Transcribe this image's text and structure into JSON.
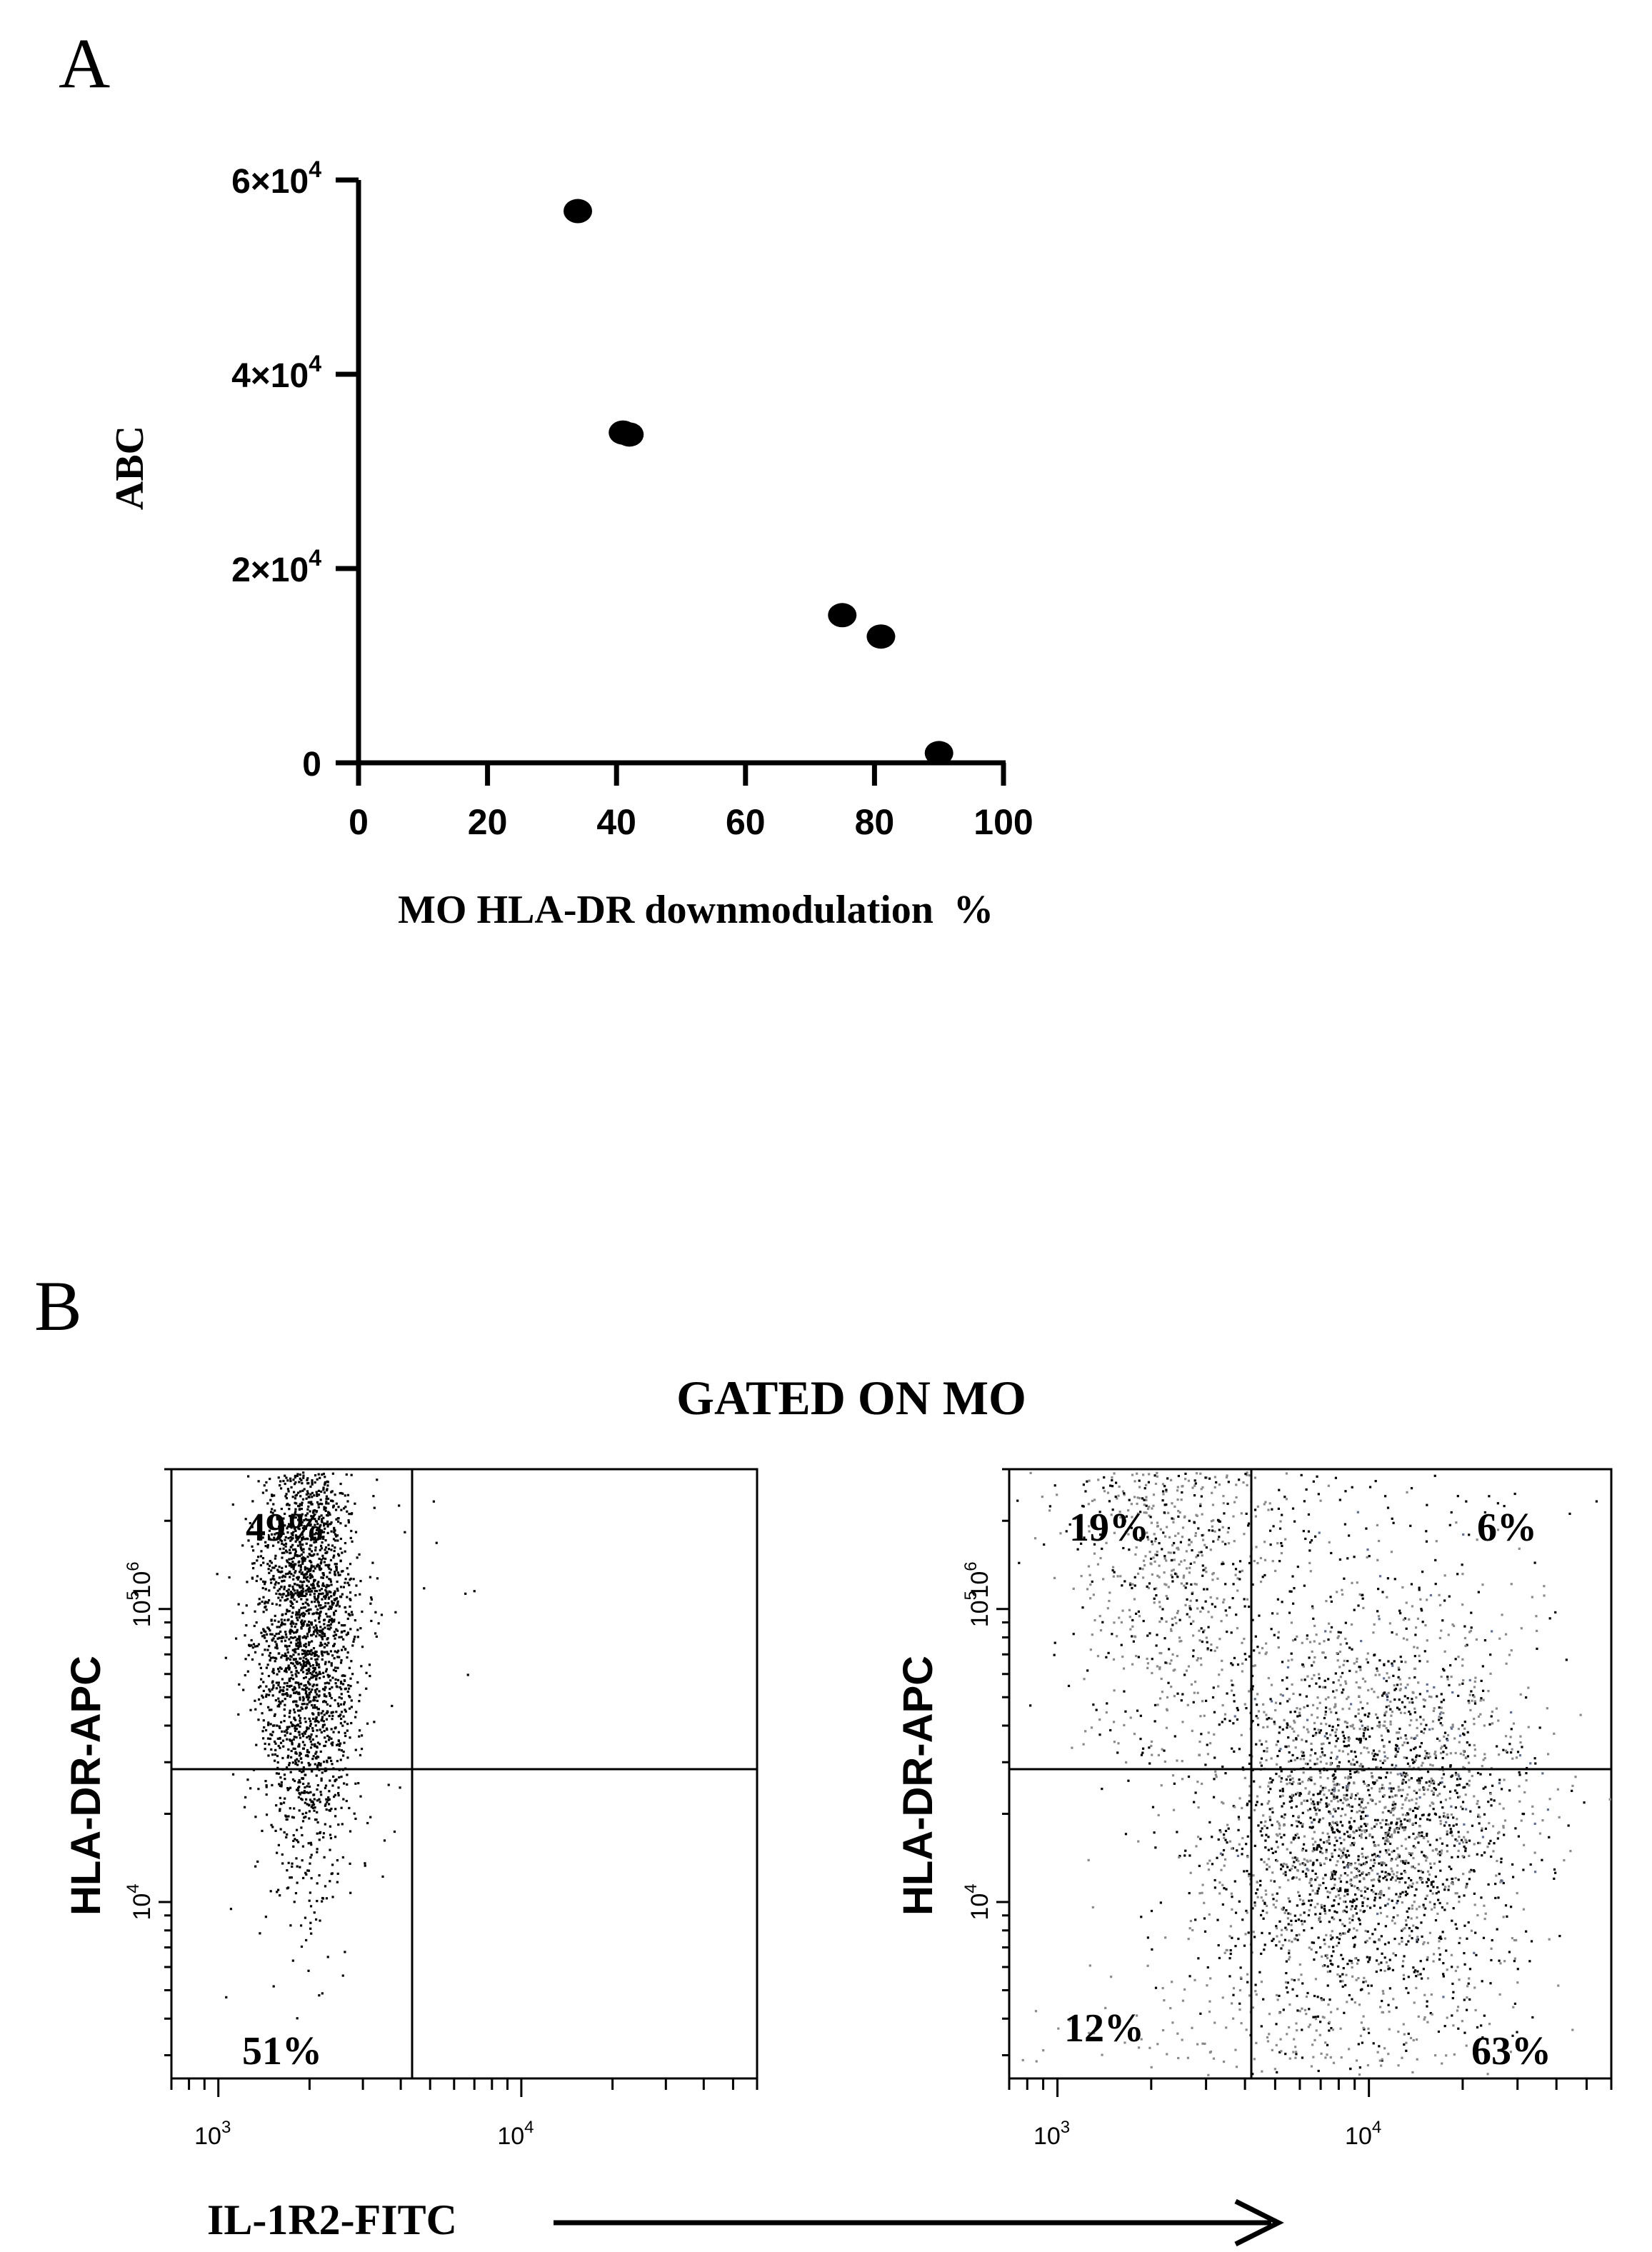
{
  "panel_labels": {
    "a": "A",
    "b": "B"
  },
  "chart_data": [
    {
      "type": "scatter",
      "panel": "A",
      "title": "",
      "xlabel": "MO HLA-DR downmodulation  %",
      "ylabel": "ABC",
      "xlim": [
        0,
        100
      ],
      "ylim": [
        0,
        60000
      ],
      "xticks": [
        0,
        20,
        40,
        60,
        80,
        100
      ],
      "yticks": [
        {
          "value": 0,
          "base": "0",
          "exp": ""
        },
        {
          "value": 20000,
          "base": "2×10",
          "exp": "4"
        },
        {
          "value": 40000,
          "base": "4×10",
          "exp": "4"
        },
        {
          "value": 60000,
          "base": "6×10",
          "exp": "4"
        }
      ],
      "color": "#000000",
      "points": [
        {
          "x": 34,
          "y": 56800
        },
        {
          "x": 41,
          "y": 34000
        },
        {
          "x": 42,
          "y": 33800
        },
        {
          "x": 75,
          "y": 15200
        },
        {
          "x": 81,
          "y": 13000
        },
        {
          "x": 90,
          "y": 1000
        }
      ],
      "grid": false,
      "legend": "none"
    },
    {
      "type": "scatter",
      "panel": "B-left",
      "group_title": "GATED ON MO",
      "xlabel": "IL-1R2-FITC",
      "ylabel": "HLA-DR-APC",
      "xscale": "log",
      "yscale": "log",
      "xlim": [
        700,
        60000
      ],
      "ylim": [
        2500,
        300000
      ],
      "xtick_labels": [
        {
          "base": "10",
          "exp": "3",
          "value": 1000
        },
        {
          "base": "10",
          "exp": "4",
          "value": 10000
        }
      ],
      "ytick_labels": [
        {
          "base": "10",
          "exp": "4",
          "value": 10000
        },
        {
          "base": "10",
          "exp": "5",
          "value": 100000
        },
        {
          "base": "10",
          "exp": "6",
          "value": 1000000
        }
      ],
      "gates": {
        "x": 4200,
        "y": 100000
      },
      "quadrant_labels": {
        "upper_left": "49%",
        "lower_left": "51%"
      },
      "dot_colors": [
        "#000000"
      ]
    },
    {
      "type": "scatter",
      "panel": "B-right",
      "xlabel": "IL-1R2-FITC",
      "ylabel": "HLA-DR-APC",
      "xscale": "log",
      "yscale": "log",
      "xlim": [
        700,
        60000
      ],
      "ylim": [
        2500,
        300000
      ],
      "xtick_labels": [
        {
          "base": "10",
          "exp": "3",
          "value": 1000
        },
        {
          "base": "10",
          "exp": "4",
          "value": 10000
        }
      ],
      "ytick_labels": [
        {
          "base": "10",
          "exp": "4",
          "value": 10000
        },
        {
          "base": "10",
          "exp": "5",
          "value": 100000
        },
        {
          "base": "10",
          "exp": "6",
          "value": 1000000
        }
      ],
      "gates": {
        "x": 4200,
        "y": 100000
      },
      "quadrant_labels": {
        "upper_left": "19%",
        "upper_right": "6%",
        "lower_left": "12%",
        "lower_right": "63%"
      },
      "dot_colors": [
        "#000000",
        "#8a8a8a",
        "#5a6e9a"
      ]
    }
  ]
}
